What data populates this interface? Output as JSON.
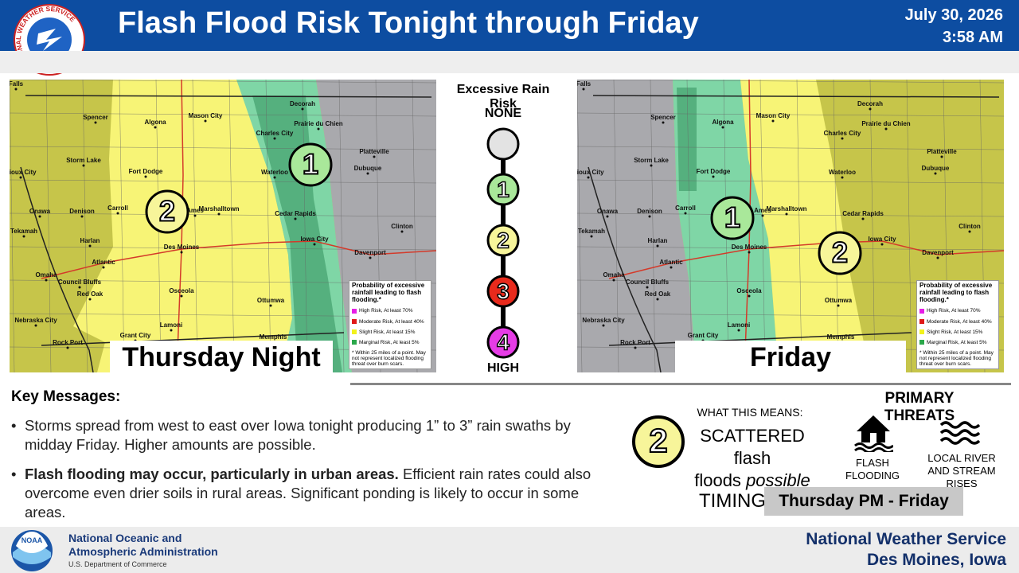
{
  "header": {
    "logo_text": "NATIONAL WEATHER SERVICE",
    "title": "Flash Flood Risk Tonight through Friday",
    "date": "July 30, 2026",
    "time": "3:58 AM"
  },
  "maps": [
    {
      "label": "Thursday Night",
      "risk_badges": [
        "1",
        "2"
      ],
      "cities": [
        "Falls",
        "Spencer",
        "Algona",
        "Mason City",
        "Decorah",
        "Prairie du Chien",
        "Charles City",
        "Platteville",
        "Storm Lake",
        "Fort Dodge",
        "Waterloo",
        "Dubuque",
        "Sioux City",
        "Onawa",
        "Denison",
        "Carroll",
        "Ames",
        "Marshalltown",
        "Cedar Rapids",
        "Tekamah",
        "Harlan",
        "Iowa City",
        "Clinton",
        "Des Moines",
        "Davenport",
        "Atlantic",
        "Omaha",
        "Council Bluffs",
        "Red Oak",
        "Osceola",
        "Ottumwa",
        "Nebraska City",
        "Lamoni",
        "Grant City",
        "Memphis",
        "Rock Port"
      ],
      "legend": {
        "title": "Probability of excessive rainfall leading to flash flooding.*",
        "items": [
          "High Risk, At least 70%",
          "Moderate Risk, At least 40%",
          "Slight Risk, At least 15%",
          "Marginal Risk, At least 5%"
        ],
        "note": "* Within 25 miles of a point. May not represent localized flooding threat over burn scars."
      }
    },
    {
      "label": "Friday",
      "risk_badges": [
        "1",
        "2"
      ],
      "cities": [
        "Falls",
        "Spencer",
        "Algona",
        "Mason City",
        "Decorah",
        "Prairie du Chien",
        "Charles City",
        "Platteville",
        "Storm Lake",
        "Fort Dodge",
        "Waterloo",
        "Dubuque",
        "Sioux City",
        "Onawa",
        "Denison",
        "Carroll",
        "Ames",
        "Marshalltown",
        "Cedar Rapids",
        "Tekamah",
        "Harlan",
        "Iowa City",
        "Clinton",
        "Des Moines",
        "Davenport",
        "Atlantic",
        "Omaha",
        "Council Bluffs",
        "Red Oak",
        "Osceola",
        "Ottumwa",
        "Nebraska City",
        "Lamoni",
        "Grant City",
        "Memphis",
        "Rock Port"
      ],
      "legend": {
        "title": "Probability of excessive rainfall leading to flash flooding.*",
        "items": [
          "High Risk, At least 70%",
          "Moderate Risk, At least 40%",
          "Slight Risk, At least 15%",
          "Marginal Risk, At least 5%"
        ],
        "note": "* Within 25 miles of a point. May not represent localized flooding threat over burn scars."
      }
    }
  ],
  "risk_scale": {
    "title": "Excessive Rain Risk",
    "low_label": "NONE",
    "levels": [
      "1",
      "2",
      "3",
      "4"
    ],
    "high_label": "HIGH"
  },
  "key_messages": {
    "title": "Key Messages:",
    "bullets": [
      {
        "text": "Storms spread from west to east over Iowa tonight producing 1” to 3” rain swaths by midday Friday. Higher amounts are possible."
      },
      {
        "bold": "Flash flooding may occur, particularly in urban areas.",
        "text": "Efficient rain rates could also overcome even drier soils in rural areas. Significant ponding is likely to occur in some areas."
      }
    ]
  },
  "meaning": {
    "level": "2",
    "heading": "WHAT THIS MEANS:",
    "line1": "SCATTERED flash",
    "line2": "floods",
    "line2_emphasis": "possible"
  },
  "threats": {
    "title": "PRIMARY THREATS",
    "items": [
      "FLASH FLOODING",
      "LOCAL RIVER AND STREAM RISES"
    ]
  },
  "timing": {
    "label": "TIMING",
    "value": "Thursday PM - Friday"
  },
  "footer": {
    "noaa_logo": "NOAA",
    "agency_line1": "National Oceanic and",
    "agency_line2": "Atmospheric Administration",
    "department": "U.S. Department of Commerce",
    "office_line1": "National Weather Service",
    "office_line2": "Des Moines, Iowa"
  }
}
